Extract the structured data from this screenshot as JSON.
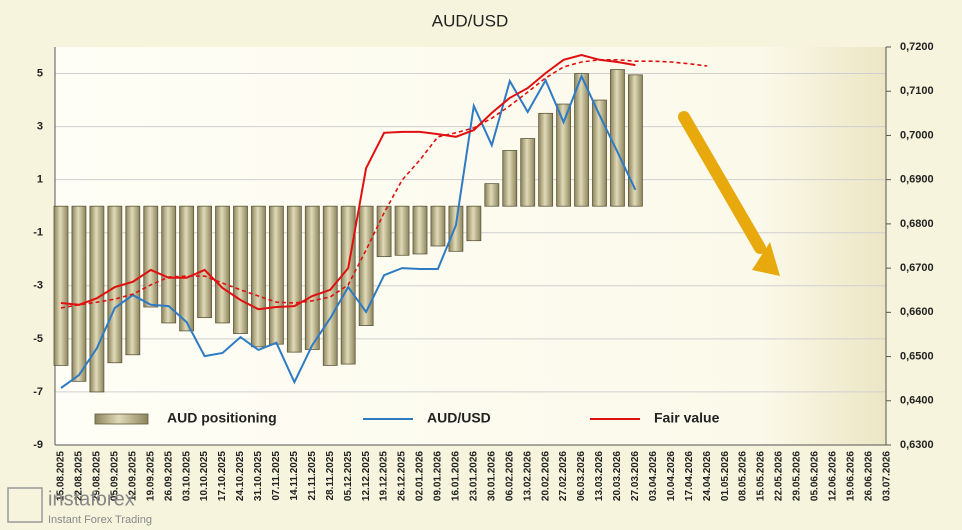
{
  "chart_data": {
    "type": "combo",
    "title": "AUD/USD",
    "categories": [
      "15.08.2025",
      "22.08.2025",
      "29.08.2025",
      "05.09.2025",
      "12.09.2025",
      "19.09.2025",
      "26.09.2025",
      "03.10.2025",
      "10.10.2025",
      "17.10.2025",
      "24.10.2025",
      "31.10.2025",
      "07.11.2025",
      "14.11.2025",
      "21.11.2025",
      "28.11.2025",
      "05.12.2025",
      "12.12.2025",
      "19.12.2025",
      "26.12.2025",
      "02.01.2026",
      "09.01.2026",
      "16.01.2026",
      "23.01.2026",
      "30.01.2026",
      "06.02.2026",
      "13.02.2026",
      "20.02.2026",
      "27.02.2026",
      "06.03.2026",
      "13.03.2026",
      "20.03.2026",
      "27.03.2026",
      "03.04.2026",
      "10.04.2026",
      "17.04.2026",
      "24.04.2026",
      "01.05.2026",
      "08.05.2026",
      "15.05.2026",
      "22.05.2026",
      "29.05.2026",
      "05.06.2026",
      "12.06.2026",
      "19.06.2026",
      "26.06.2026",
      "03.07.2026"
    ],
    "series": [
      {
        "name": "AUD positioning",
        "type": "bar",
        "axis": "y",
        "color": "#b3aa80",
        "values": [
          -6.0,
          -6.6,
          -7.0,
          -5.9,
          -5.6,
          -3.8,
          -4.4,
          -4.7,
          -4.2,
          -4.4,
          -4.8,
          -5.3,
          -5.2,
          -5.5,
          -5.4,
          -6.0,
          -5.95,
          -4.5,
          -1.9,
          -1.85,
          -1.8,
          -1.5,
          -1.7,
          -1.3,
          0.85,
          2.1,
          2.55,
          3.5,
          3.85,
          5.0,
          4.0,
          5.15,
          4.95,
          null,
          null,
          null,
          null,
          null,
          null,
          null,
          null,
          null,
          null,
          null,
          null,
          null,
          null
        ]
      },
      {
        "name": "AUD/USD",
        "type": "line",
        "axis": "y2",
        "color": "#2e7bc4",
        "values": [
          0.6429,
          0.6458,
          0.6519,
          0.661,
          0.6639,
          0.6617,
          0.6614,
          0.6578,
          0.6501,
          0.6508,
          0.6544,
          0.6515,
          0.6531,
          0.6442,
          0.6526,
          0.6587,
          0.6657,
          0.6601,
          0.6684,
          0.67,
          0.6698,
          0.6698,
          0.6797,
          0.7067,
          0.6978,
          0.7123,
          0.7053,
          0.7125,
          0.703,
          0.7134,
          0.7046,
          0.6963,
          0.6877,
          null,
          null,
          null,
          null,
          null,
          null,
          null,
          null,
          null,
          null,
          null,
          null,
          null,
          null
        ]
      },
      {
        "name": "Fair value",
        "type": "line",
        "axis": "y2",
        "color": "#e01010",
        "values": [
          0.6621,
          0.6617,
          0.6632,
          0.6657,
          0.6669,
          0.6696,
          0.6678,
          0.6678,
          0.6696,
          0.6655,
          0.6628,
          0.6607,
          0.6612,
          0.6614,
          0.6637,
          0.6651,
          0.67,
          0.6926,
          0.7006,
          0.7008,
          0.7008,
          0.7003,
          0.6997,
          0.7012,
          0.7051,
          0.7085,
          0.7107,
          0.7141,
          0.7171,
          0.7182,
          0.7171,
          0.7166,
          0.7159,
          null,
          null,
          null,
          null,
          null,
          null,
          null,
          null,
          null,
          null,
          null,
          null,
          null,
          null
        ]
      },
      {
        "type": "line",
        "axis": "y2",
        "color": "#e01010",
        "dashed": true,
        "values": [
          0.661,
          0.6617,
          0.6623,
          0.663,
          0.6641,
          0.6662,
          0.668,
          0.6682,
          0.6682,
          0.6666,
          0.6651,
          0.6637,
          0.6623,
          0.6621,
          0.6626,
          0.6635,
          0.6662,
          0.6741,
          0.6825,
          0.6899,
          0.6945,
          0.6997,
          0.7006,
          0.7017,
          0.7039,
          0.7067,
          0.7098,
          0.713,
          0.7155,
          0.7166,
          0.7171,
          0.7171,
          0.7168,
          0.7168,
          0.7166,
          0.7162,
          0.7157,
          null,
          null,
          null,
          null,
          null,
          null,
          null,
          null,
          null,
          null
        ]
      }
    ],
    "ylim": [
      -9,
      6
    ],
    "yticks": [
      -9,
      -7,
      -5,
      -3,
      -1,
      1,
      3,
      5
    ],
    "y2lim": [
      0.63,
      0.72
    ],
    "y2ticks": [
      {
        "value": 0.63,
        "label": "0,6300"
      },
      {
        "value": 0.64,
        "label": "0,6400"
      },
      {
        "value": 0.65,
        "label": "0,6500"
      },
      {
        "value": 0.66,
        "label": "0,6600"
      },
      {
        "value": 0.67,
        "label": "0,6700"
      },
      {
        "value": 0.68,
        "label": "0,6800"
      },
      {
        "value": 0.69,
        "label": "0,6900"
      },
      {
        "value": 0.7,
        "label": "0,7000"
      },
      {
        "value": 0.71,
        "label": "0,7100"
      },
      {
        "value": 0.72,
        "label": "0,7200"
      }
    ],
    "grid": true,
    "legend": "bottom"
  },
  "watermark": {
    "brand": "instaforex",
    "tagline": "Instant Forex Trading"
  }
}
